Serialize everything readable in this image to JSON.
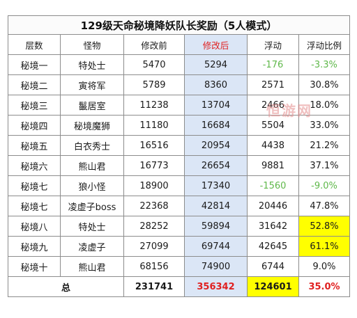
{
  "title": "129级天命秘境降妖队长奖励（5人模式）",
  "headers": [
    "层数",
    "怪物",
    "修改前",
    "修改后",
    "浮动",
    "浮动比例"
  ],
  "rows": [
    {
      "level": "秘境一",
      "monster": "特处士",
      "before": "5470",
      "after": "5294",
      "change": "-176",
      "ratio": "-3.3%"
    },
    {
      "level": "秘境二",
      "monster": "寅将军",
      "before": "5789",
      "after": "8360",
      "change": "2571",
      "ratio": "30.8%"
    },
    {
      "level": "秘境三",
      "monster": "鬣居室",
      "before": "11238",
      "after": "13704",
      "change": "2466",
      "ratio": "18.0%"
    },
    {
      "level": "秘境四",
      "monster": "秘境魔狮",
      "before": "11180",
      "after": "16684",
      "change": "5504",
      "ratio": "33.0%"
    },
    {
      "level": "秘境五",
      "monster": "白衣秀士",
      "before": "16516",
      "after": "20954",
      "change": "4438",
      "ratio": "21.2%"
    },
    {
      "level": "秘境六",
      "monster": "熊山君",
      "before": "16773",
      "after": "26654",
      "change": "9881",
      "ratio": "37.1%"
    },
    {
      "level": "秘境七",
      "monster": "狼小怪",
      "before": "18900",
      "after": "17340",
      "change": "-1560",
      "ratio": "-9.0%"
    },
    {
      "level": "秘境七",
      "monster": "凌虚子boss",
      "before": "22368",
      "after": "42814",
      "change": "20446",
      "ratio": "47.8%"
    },
    {
      "level": "秘境八",
      "monster": "特处士",
      "before": "28252",
      "after": "59894",
      "change": "31642",
      "ratio": "52.8%"
    },
    {
      "level": "秘境九",
      "monster": "凌虚子",
      "before": "27099",
      "after": "69744",
      "change": "42645",
      "ratio": "61.1%"
    },
    {
      "level": "秘境十",
      "monster": "熊山君",
      "before": "68156",
      "after": "74900",
      "change": "6744",
      "ratio": "9.0%"
    }
  ],
  "total": {
    "label": "总",
    "before": "231741",
    "after": "356342",
    "change": "124601",
    "ratio": "35.0%"
  },
  "watermark": "恒游网",
  "colors": {
    "after_column_bg": "#dbe6f6",
    "highlight_yellow": "#ffff00",
    "negative_green": "#5fb84a",
    "accent_red": "#e02020"
  }
}
